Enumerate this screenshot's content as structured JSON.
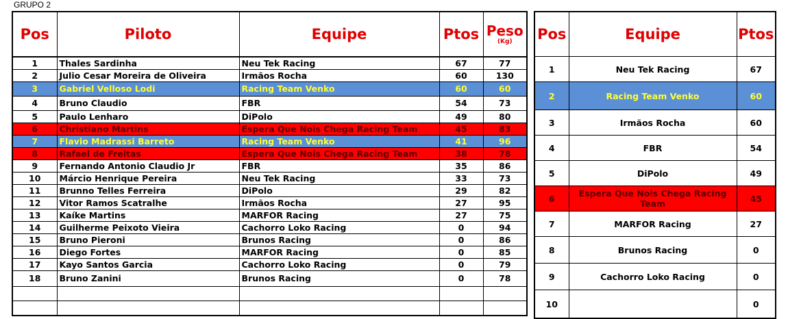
{
  "group_title": "GRUPO 2",
  "left": {
    "headers": {
      "pos": "Pos",
      "piloto": "Piloto",
      "equipe": "Equipe",
      "ptos": "Ptos",
      "peso": "Peso",
      "peso_unit": "(Kg)"
    },
    "rows": [
      {
        "pos": "1",
        "piloto": "Thales Sardinha",
        "equipe": "Neu Tek Racing",
        "ptos": "67",
        "peso": "77",
        "hl": ""
      },
      {
        "pos": "2",
        "piloto": "Julio Cesar Moreira de Oliveira",
        "equipe": "Irmãos Rocha",
        "ptos": "60",
        "peso": "130",
        "hl": ""
      },
      {
        "pos": "3",
        "piloto": "Gabriel Velloso Lodi",
        "equipe": "Racing Team Venko",
        "ptos": "60",
        "peso": "60",
        "hl": "blue"
      },
      {
        "pos": "4",
        "piloto": "Bruno Claudio",
        "equipe": "FBR",
        "ptos": "54",
        "peso": "73",
        "hl": ""
      },
      {
        "pos": "5",
        "piloto": "Paulo Lenharo",
        "equipe": "DiPolo",
        "ptos": "49",
        "peso": "80",
        "hl": ""
      },
      {
        "pos": "6",
        "piloto": "Christiano Martins",
        "equipe": "Espera Que Nois Chega Racing Team",
        "ptos": "45",
        "peso": "83",
        "hl": "red"
      },
      {
        "pos": "7",
        "piloto": "Flavio Madrassi Barreto",
        "equipe": "Racing Team Venko",
        "ptos": "41",
        "peso": "96",
        "hl": "blue"
      },
      {
        "pos": "8",
        "piloto": "Rafael de Freitas",
        "equipe": "Espera Que Nois Chega Racing Team",
        "ptos": "38",
        "peso": "78",
        "hl": "red"
      },
      {
        "pos": "9",
        "piloto": "Fernando Antonio Claudio Jr",
        "equipe": "FBR",
        "ptos": "35",
        "peso": "86",
        "hl": ""
      },
      {
        "pos": "10",
        "piloto": "Márcio Henrique Pereira",
        "equipe": "Neu Tek Racing",
        "ptos": "33",
        "peso": "73",
        "hl": ""
      },
      {
        "pos": "11",
        "piloto": "Brunno Telles Ferreira",
        "equipe": "DiPolo",
        "ptos": "29",
        "peso": "82",
        "hl": ""
      },
      {
        "pos": "12",
        "piloto": "Vitor Ramos Scatralhe",
        "equipe": "Irmãos Rocha",
        "ptos": "27",
        "peso": "95",
        "hl": ""
      },
      {
        "pos": "13",
        "piloto": "Kaíke Martins",
        "equipe": "MARFOR Racing",
        "ptos": "27",
        "peso": "75",
        "hl": ""
      },
      {
        "pos": "14",
        "piloto": "Guilherme Peixoto Vieira",
        "equipe": "Cachorro Loko Racing",
        "ptos": "0",
        "peso": "94",
        "hl": ""
      },
      {
        "pos": "15",
        "piloto": "Bruno Pieroni",
        "equipe": "Brunos Racing",
        "ptos": "0",
        "peso": "86",
        "hl": ""
      },
      {
        "pos": "16",
        "piloto": "Diego Fortes",
        "equipe": "MARFOR Racing",
        "ptos": "0",
        "peso": "85",
        "hl": ""
      },
      {
        "pos": "17",
        "piloto": "Kayo Santos Garcia",
        "equipe": "Cachorro Loko Racing",
        "ptos": "0",
        "peso": "79",
        "hl": ""
      },
      {
        "pos": "18",
        "piloto": "Bruno Zanini",
        "equipe": "Brunos Racing",
        "ptos": "0",
        "peso": "78",
        "hl": ""
      },
      {
        "pos": "",
        "piloto": "",
        "equipe": "",
        "ptos": "",
        "peso": "",
        "hl": ""
      },
      {
        "pos": "",
        "piloto": "",
        "equipe": "",
        "ptos": "",
        "peso": "",
        "hl": ""
      }
    ]
  },
  "right": {
    "headers": {
      "pos": "Pos",
      "equipe": "Equipe",
      "ptos": "Ptos"
    },
    "rows": [
      {
        "pos": "1",
        "equipe": "Neu Tek Racing",
        "ptos": "67",
        "hl": ""
      },
      {
        "pos": "2",
        "equipe": "Racing Team Venko",
        "ptos": "60",
        "hl": "blue"
      },
      {
        "pos": "3",
        "equipe": "Irmãos Rocha",
        "ptos": "60",
        "hl": ""
      },
      {
        "pos": "4",
        "equipe": "FBR",
        "ptos": "54",
        "hl": ""
      },
      {
        "pos": "5",
        "equipe": "DiPolo",
        "ptos": "49",
        "hl": ""
      },
      {
        "pos": "6",
        "equipe": "Espera Que Nois Chega Racing Team",
        "ptos": "45",
        "hl": "red"
      },
      {
        "pos": "7",
        "equipe": "MARFOR Racing",
        "ptos": "27",
        "hl": ""
      },
      {
        "pos": "8",
        "equipe": "Brunos Racing",
        "ptos": "0",
        "hl": ""
      },
      {
        "pos": "9",
        "equipe": "Cachorro Loko Racing",
        "ptos": "0",
        "hl": ""
      },
      {
        "pos": "10",
        "equipe": "",
        "ptos": "0",
        "hl": ""
      }
    ]
  },
  "colors": {
    "highlight_blue": "#5b8fd6",
    "highlight_blue_text": "#ffff33",
    "highlight_red": "#ff0000",
    "header_text": "#e00000"
  }
}
